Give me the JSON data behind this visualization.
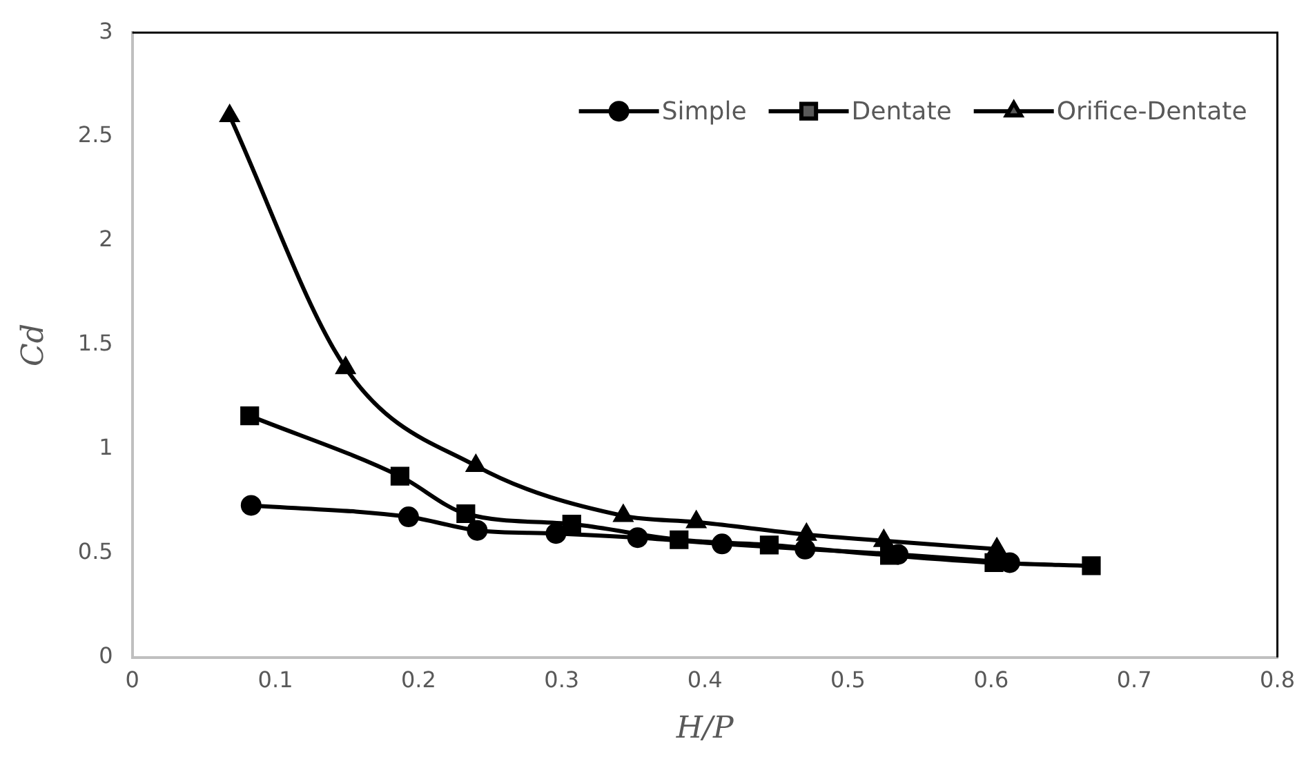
{
  "chart_data": {
    "type": "line",
    "xlabel": "H/P",
    "ylabel": "Cd",
    "xlim": [
      0,
      0.8
    ],
    "xticks": [
      0,
      0.1,
      0.2,
      0.3,
      0.4,
      0.5,
      0.6,
      0.7,
      0.8
    ],
    "ylim": [
      0,
      3
    ],
    "yticks": [
      0,
      0.5,
      1,
      1.5,
      2,
      2.5,
      3
    ],
    "grid": false,
    "legend": "top right",
    "line_style": "solid",
    "series": [
      {
        "name": "Simple",
        "color": "#000000",
        "marker": "circle",
        "x": [
          0.083,
          0.193,
          0.241,
          0.296,
          0.353,
          0.412,
          0.47,
          0.535,
          0.613
        ],
        "values": [
          0.73,
          0.675,
          0.61,
          0.595,
          0.575,
          0.545,
          0.52,
          0.495,
          0.455
        ]
      },
      {
        "name": "Dentate",
        "color": "#000000",
        "marker": "square",
        "x": [
          0.082,
          0.187,
          0.233,
          0.307,
          0.382,
          0.445,
          0.529,
          0.602,
          0.67
        ],
        "values": [
          1.16,
          0.87,
          0.69,
          0.64,
          0.565,
          0.54,
          0.49,
          0.455,
          0.44
        ]
      },
      {
        "name": "Orifice-Dentate",
        "color": "#000000",
        "marker": "triangle",
        "x": [
          0.068,
          0.149,
          0.24,
          0.343,
          0.394,
          0.471,
          0.525,
          0.604
        ],
        "values": [
          2.6,
          1.39,
          0.92,
          0.68,
          0.65,
          0.59,
          0.56,
          0.52
        ]
      }
    ]
  }
}
